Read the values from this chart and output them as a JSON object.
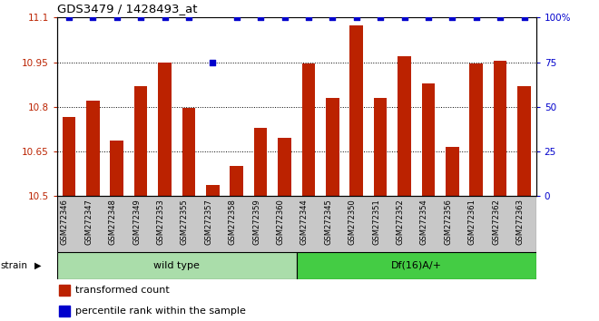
{
  "title": "GDS3479 / 1428493_at",
  "categories": [
    "GSM272346",
    "GSM272347",
    "GSM272348",
    "GSM272349",
    "GSM272353",
    "GSM272355",
    "GSM272357",
    "GSM272358",
    "GSM272359",
    "GSM272360",
    "GSM272344",
    "GSM272345",
    "GSM272350",
    "GSM272351",
    "GSM272352",
    "GSM272354",
    "GSM272356",
    "GSM272361",
    "GSM272362",
    "GSM272363"
  ],
  "bar_values": [
    10.765,
    10.82,
    10.685,
    10.87,
    10.95,
    10.795,
    10.535,
    10.6,
    10.73,
    10.695,
    10.945,
    10.83,
    11.075,
    10.83,
    10.97,
    10.88,
    10.665,
    10.945,
    10.955,
    10.87
  ],
  "percentile_values": [
    100,
    100,
    100,
    100,
    100,
    100,
    75,
    100,
    100,
    100,
    100,
    100,
    100,
    100,
    100,
    100,
    100,
    100,
    100,
    100
  ],
  "ymin": 10.5,
  "ymax": 11.1,
  "yticks_left": [
    10.5,
    10.65,
    10.8,
    10.95,
    11.1
  ],
  "ytick_labels_left": [
    "10.5",
    "10.65",
    "10.8",
    "10.95",
    "11.1"
  ],
  "yticks_right": [
    0,
    25,
    50,
    75,
    100
  ],
  "ytick_labels_right": [
    "0",
    "25",
    "50",
    "75",
    "100%"
  ],
  "bar_color": "#bb2200",
  "dot_color": "#0000cc",
  "wild_type_color": "#aaddaa",
  "df_color": "#44cc44",
  "wild_type_label": "wild type",
  "df_label": "Df(16)A/+",
  "strain_label": "strain",
  "legend_bar_label": "transformed count",
  "legend_dot_label": "percentile rank within the sample",
  "wild_type_count": 10,
  "df_count": 10,
  "gridline_values": [
    10.65,
    10.8,
    10.95
  ]
}
